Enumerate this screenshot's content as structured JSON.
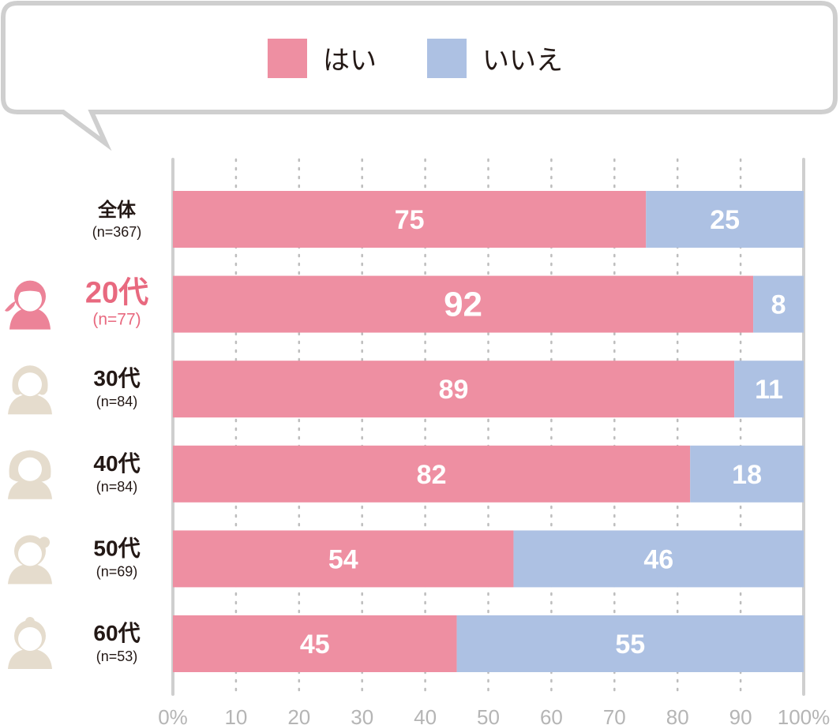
{
  "chart_data": {
    "type": "bar",
    "orientation": "horizontal",
    "stacked": true,
    "categories": [
      {
        "label": "全体",
        "n": "(n=367)",
        "highlight": false,
        "icon": "none"
      },
      {
        "label": "20代",
        "n": "(n=77)",
        "highlight": true,
        "icon": "woman-ponytail-icon"
      },
      {
        "label": "30代",
        "n": "(n=84)",
        "highlight": false,
        "icon": "woman-bob-icon"
      },
      {
        "label": "40代",
        "n": "(n=84)",
        "highlight": false,
        "icon": "woman-long-hair-icon"
      },
      {
        "label": "50代",
        "n": "(n=69)",
        "highlight": false,
        "icon": "woman-bun-icon"
      },
      {
        "label": "60代",
        "n": "(n=53)",
        "highlight": false,
        "icon": "woman-topknot-icon"
      }
    ],
    "series": [
      {
        "name": "はい",
        "color": "#ee8fa2",
        "values": [
          75,
          92,
          89,
          82,
          54,
          45
        ]
      },
      {
        "name": "いいえ",
        "color": "#adc1e3",
        "values": [
          25,
          8,
          11,
          18,
          46,
          55
        ]
      }
    ],
    "xlim": [
      0,
      100
    ],
    "xticks": [
      "0%",
      "10",
      "20",
      "30",
      "40",
      "50",
      "60",
      "70",
      "80",
      "90",
      "100%"
    ],
    "grid": true,
    "legend_position": "top",
    "colors": {
      "highlight_text": "#e8697f",
      "highlight_icon": "#ec8398",
      "icon": "#e5dccd",
      "text": "#231815",
      "tick": "#b5b5b5"
    }
  }
}
